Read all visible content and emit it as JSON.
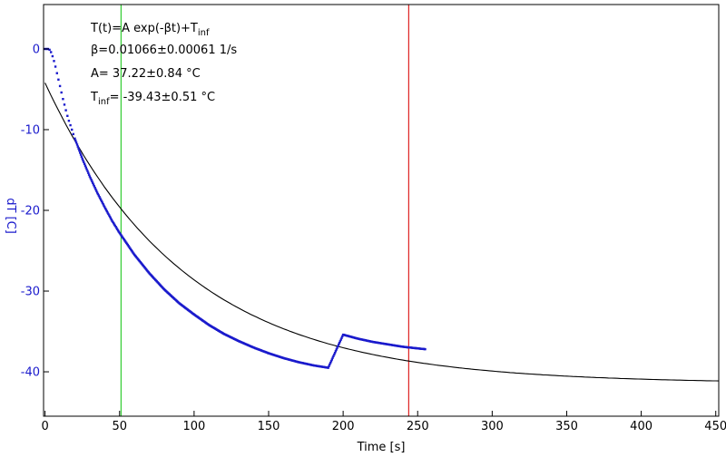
{
  "chart_data": {
    "type": "scatter",
    "xlabel": "Time [s]",
    "ylabel": "dT [C]",
    "xlim": [
      -1,
      452
    ],
    "ylim": [
      -45.5,
      5.5
    ],
    "xticks": [
      0,
      50,
      100,
      150,
      200,
      250,
      300,
      350,
      400,
      450
    ],
    "yticks": [
      0,
      -10,
      -20,
      -30,
      -40
    ],
    "grid": false,
    "colors": {
      "data": "#1a1acc",
      "fit": "#000000",
      "axis_label": "#1a1acc",
      "cursor_left": "#33cc33",
      "cursor_right": "#dd2222"
    },
    "annotations": {
      "model": {
        "prefix": "T(t)=A exp(-βt)+T",
        "sub": "inf"
      },
      "beta": "β=0.01066±0.00061 1/s",
      "amp": "A= 37.22±0.84 °C",
      "tinf": {
        "prefix": "T",
        "sub": "inf",
        "suffix": "= -39.43±0.51 °C"
      }
    },
    "cursors": [
      {
        "name": "left",
        "x": 51
      },
      {
        "name": "right",
        "x": 244
      }
    ],
    "fit": {
      "A": 37.22,
      "beta": 0.01066,
      "T_inf": -39.43,
      "x_start": 0,
      "x_end": 452,
      "offset": -2.0
    },
    "series": [
      {
        "type": "scatter",
        "x": [
          0,
          1,
          2,
          3,
          4,
          5,
          6,
          7,
          8,
          9,
          10,
          11,
          12,
          13,
          14,
          15,
          16,
          18,
          20,
          25,
          30,
          35,
          40,
          45,
          50,
          60,
          70,
          80,
          90,
          100,
          110,
          120,
          130,
          140,
          150,
          160,
          170,
          180,
          190,
          200,
          210,
          220,
          230,
          240,
          250,
          255
        ],
        "y": [
          0,
          0,
          0,
          -0.1,
          -0.4,
          -0.9,
          -1.5,
          -2.2,
          -3.0,
          -3.8,
          -4.6,
          -5.4,
          -6.2,
          -6.9,
          -7.6,
          -8.3,
          -8.9,
          -10.0,
          -11.1,
          -13.6,
          -15.8,
          -17.8,
          -19.6,
          -21.3,
          -22.8,
          -25.5,
          -27.8,
          -29.8,
          -31.5,
          -32.9,
          -34.2,
          -35.3,
          -36.2,
          -37.0,
          -37.7,
          -38.3,
          -38.8,
          -39.2,
          -39.5,
          -35.4,
          -35.9,
          -36.3,
          -36.6,
          -36.9,
          -37.1,
          -37.2
        ]
      }
    ]
  }
}
